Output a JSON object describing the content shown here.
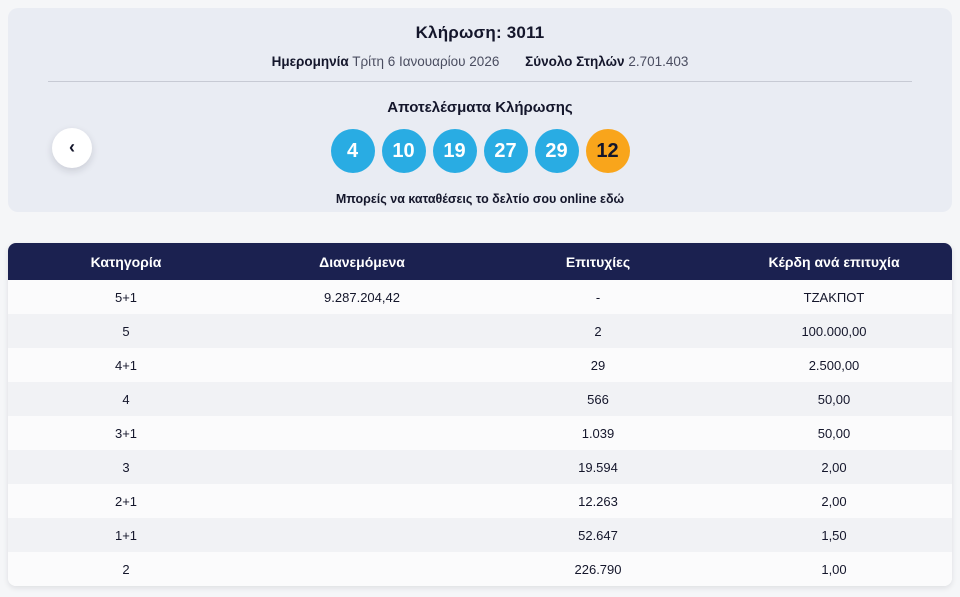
{
  "hero": {
    "title": "Κλήρωση: 3011",
    "date_label": "Ημερομηνία",
    "date_value": "Τρίτη 6 Ιανουαρίου 2026",
    "columns_label": "Σύνολο Στηλών",
    "columns_value": "2.701.403",
    "results_heading": "Αποτελέσματα Κλήρωσης",
    "caption": "Μπορείς να καταθέσεις το δελτίο σου online εδώ",
    "prev_icon": "‹"
  },
  "results": {
    "numbers": [
      "4",
      "10",
      "19",
      "27",
      "29"
    ],
    "joker": "12",
    "number_color": "#29ace3",
    "joker_color": "#f9a51b"
  },
  "table": {
    "headers": [
      "Κατηγορία",
      "Διανεμόμενα",
      "Επιτυχίες",
      "Κέρδη ανά επιτυχία"
    ],
    "header_bg": "#1b2150",
    "rows": [
      {
        "category": "5+1",
        "distributed": "9.287.204,42",
        "successes": "-",
        "winnings": "ΤΖΑΚΠΟΤ"
      },
      {
        "category": "5",
        "distributed": "",
        "successes": "2",
        "winnings": "100.000,00"
      },
      {
        "category": "4+1",
        "distributed": "",
        "successes": "29",
        "winnings": "2.500,00"
      },
      {
        "category": "4",
        "distributed": "",
        "successes": "566",
        "winnings": "50,00"
      },
      {
        "category": "3+1",
        "distributed": "",
        "successes": "1.039",
        "winnings": "50,00"
      },
      {
        "category": "3",
        "distributed": "",
        "successes": "19.594",
        "winnings": "2,00"
      },
      {
        "category": "2+1",
        "distributed": "",
        "successes": "12.263",
        "winnings": "2,00"
      },
      {
        "category": "1+1",
        "distributed": "",
        "successes": "52.647",
        "winnings": "1,50"
      },
      {
        "category": "2",
        "distributed": "",
        "successes": "226.790",
        "winnings": "1,00"
      }
    ]
  }
}
